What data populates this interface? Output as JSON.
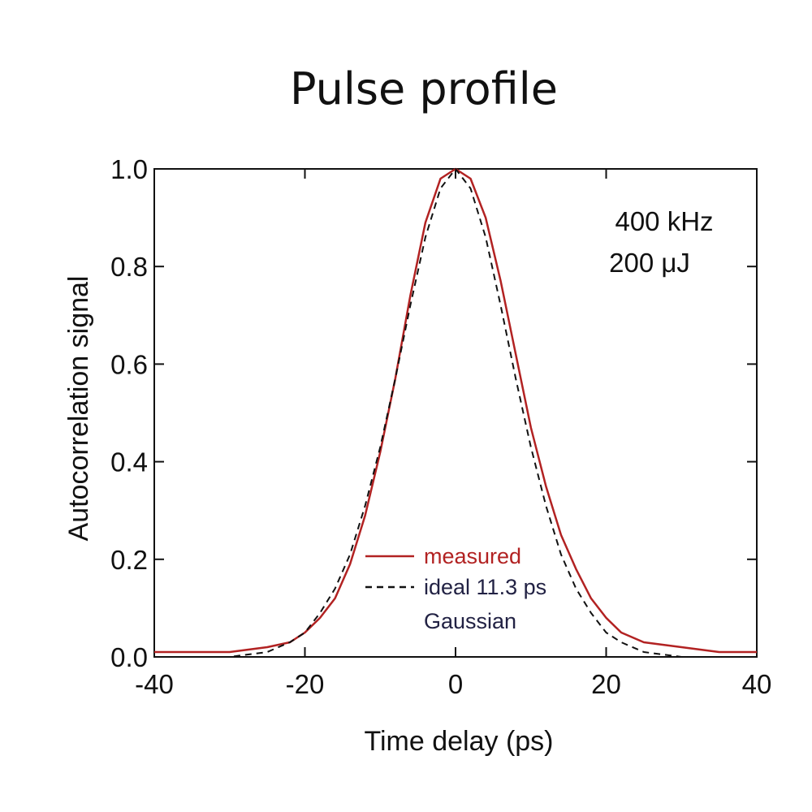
{
  "chart_data": {
    "type": "line",
    "title": "Pulse profile",
    "xlabel": "Time delay (ps)",
    "ylabel": "Autocorrelation signal",
    "xlim": [
      -40,
      40
    ],
    "ylim": [
      0,
      1.0
    ],
    "xticks": [
      -40,
      -20,
      0,
      20,
      40
    ],
    "yticks": [
      0.0,
      0.2,
      0.4,
      0.6,
      0.8,
      1.0
    ],
    "xtick_labels": [
      "-40",
      "-20",
      "0",
      "20",
      "40"
    ],
    "ytick_labels": [
      "0.0",
      "0.2",
      "0.4",
      "0.6",
      "0.8",
      "1.0"
    ],
    "grid": false,
    "legend_position": "lower-center",
    "annotations": [
      "400 kHz",
      "200 μJ"
    ],
    "series": [
      {
        "name": "measured",
        "color": "#b22222",
        "style": "solid",
        "x": [
          -40,
          -35,
          -30,
          -25,
          -22,
          -20,
          -18,
          -16,
          -14,
          -12,
          -10,
          -8,
          -6,
          -4,
          -2,
          0,
          2,
          4,
          6,
          8,
          10,
          12,
          14,
          16,
          18,
          20,
          22,
          25,
          30,
          35,
          40
        ],
        "y": [
          0.01,
          0.01,
          0.01,
          0.02,
          0.03,
          0.05,
          0.08,
          0.12,
          0.19,
          0.29,
          0.42,
          0.57,
          0.74,
          0.89,
          0.98,
          1.0,
          0.98,
          0.9,
          0.77,
          0.62,
          0.47,
          0.35,
          0.25,
          0.18,
          0.12,
          0.08,
          0.05,
          0.03,
          0.02,
          0.01,
          0.01
        ]
      },
      {
        "name": "ideal 11.3 ps Gaussian",
        "color": "#111111",
        "style": "dashed",
        "x": [
          -40,
          -35,
          -30,
          -25,
          -22,
          -20,
          -18,
          -16,
          -14,
          -12,
          -10,
          -8,
          -6,
          -4,
          -2,
          0,
          2,
          4,
          6,
          8,
          10,
          12,
          14,
          16,
          18,
          20,
          22,
          25,
          30,
          35,
          40
        ],
        "y": [
          0.0,
          0.0,
          0.0,
          0.01,
          0.03,
          0.05,
          0.09,
          0.14,
          0.21,
          0.31,
          0.43,
          0.57,
          0.72,
          0.86,
          0.96,
          1.0,
          0.96,
          0.86,
          0.72,
          0.57,
          0.43,
          0.31,
          0.21,
          0.14,
          0.09,
          0.05,
          0.03,
          0.01,
          0.0,
          0.0,
          0.0
        ]
      }
    ],
    "legend": {
      "measured_label": "measured",
      "ideal_label_line1": "ideal 11.3 ps",
      "ideal_label_line2": "Gaussian"
    }
  }
}
